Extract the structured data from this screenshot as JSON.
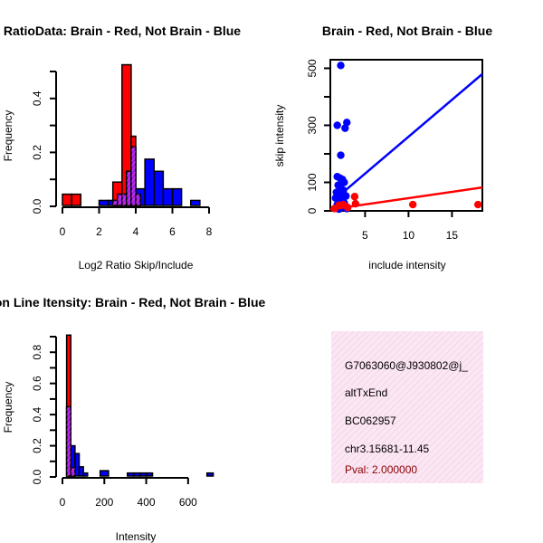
{
  "colors": {
    "brain": "#ff0000",
    "not_brain": "#0000ff",
    "overlap": "#a020f0",
    "info_box": "#f5d9ec",
    "pval": "#8b0000"
  },
  "info_box": {
    "lines": [
      "G7063060@J930802@j_",
      "altTxEnd",
      "BC062957",
      "chr3.15681-11.45"
    ],
    "pval": "Pval: 2.000000"
  },
  "chart_data": [
    {
      "id": "ratio",
      "type": "histogram",
      "title": "RatioData: Brain - Red, Not Brain - Blue",
      "xlabel": "Log2 Ratio Skip/Include",
      "ylabel": "Frequency",
      "xlim": [
        0,
        8
      ],
      "ylim": [
        0,
        0.5
      ],
      "xticks": [
        0,
        2,
        4,
        6,
        8
      ],
      "yticks": [
        0.0,
        0.2,
        0.4
      ],
      "ytick_labels": [
        "0.0",
        "0.2",
        "0.4"
      ],
      "series": [
        {
          "name": "Brain",
          "color": "red",
          "bins": [
            {
              "x0": 0.0,
              "x1": 0.5,
              "value": 0.045
            },
            {
              "x0": 0.5,
              "x1": 1.0,
              "value": 0.045
            },
            {
              "x0": 2.75,
              "x1": 3.25,
              "value": 0.09
            },
            {
              "x0": 3.25,
              "x1": 3.75,
              "value": 0.525
            },
            {
              "x0": 3.75,
              "x1": 4.0,
              "value": 0.26
            },
            {
              "x0": 4.0,
              "x1": 4.25,
              "value": 0.045
            }
          ]
        },
        {
          "name": "Not Brain",
          "color": "blue",
          "bins": [
            {
              "x0": 2.0,
              "x1": 2.5,
              "value": 0.022
            },
            {
              "x0": 2.5,
              "x1": 3.0,
              "value": 0.022
            },
            {
              "x0": 3.0,
              "x1": 3.5,
              "value": 0.045
            },
            {
              "x0": 3.5,
              "x1": 3.75,
              "value": 0.13
            },
            {
              "x0": 3.75,
              "x1": 4.0,
              "value": 0.22
            },
            {
              "x0": 4.0,
              "x1": 4.5,
              "value": 0.065
            },
            {
              "x0": 4.5,
              "x1": 5.0,
              "value": 0.175
            },
            {
              "x0": 5.0,
              "x1": 5.5,
              "value": 0.13
            },
            {
              "x0": 5.5,
              "x1": 6.0,
              "value": 0.065
            },
            {
              "x0": 6.0,
              "x1": 6.5,
              "value": 0.065
            },
            {
              "x0": 7.0,
              "x1": 7.5,
              "value": 0.022
            }
          ]
        }
      ]
    },
    {
      "id": "scatter",
      "type": "scatter",
      "title": "Brain - Red, Not Brain - Blue",
      "xlabel": "include intensity",
      "ylabel": "skip intensity",
      "xlim": [
        1,
        18.5
      ],
      "ylim": [
        0,
        530
      ],
      "xticks": [
        5,
        10,
        15
      ],
      "yticks": [
        0,
        100,
        300,
        500
      ],
      "series": [
        {
          "name": "Not Brain",
          "color": "blue",
          "points": [
            [
              2.2,
              510
            ],
            [
              1.8,
              300
            ],
            [
              2.9,
              310
            ],
            [
              2.7,
              290
            ],
            [
              2.2,
              195
            ],
            [
              1.8,
              120
            ],
            [
              2.1,
              115
            ],
            [
              2.4,
              110
            ],
            [
              2.6,
              100
            ],
            [
              1.9,
              90
            ],
            [
              2.2,
              80
            ],
            [
              2.5,
              72
            ],
            [
              1.7,
              65
            ],
            [
              2.1,
              58
            ],
            [
              2.8,
              52
            ],
            [
              1.6,
              45
            ],
            [
              2.3,
              40
            ],
            [
              2.0,
              32
            ],
            [
              2.6,
              28
            ],
            [
              1.8,
              22
            ],
            [
              2.2,
              18
            ],
            [
              2.5,
              14
            ],
            [
              1.6,
              10
            ],
            [
              2.0,
              6
            ],
            [
              2.9,
              8
            ]
          ],
          "fit": {
            "x0": 1.5,
            "y0": 40,
            "x1": 18.5,
            "y1": 480
          }
        },
        {
          "name": "Brain",
          "color": "red",
          "points": [
            [
              1.5,
              8
            ],
            [
              2.0,
              20
            ],
            [
              2.5,
              22
            ],
            [
              3.0,
              12
            ],
            [
              3.8,
              50
            ],
            [
              3.9,
              25
            ],
            [
              10.5,
              22
            ],
            [
              18.0,
              22
            ]
          ],
          "fit": {
            "x0": 1.0,
            "y0": 5,
            "x1": 18.5,
            "y1": 82
          }
        }
      ]
    },
    {
      "id": "intensity",
      "type": "histogram",
      "title": "Exon Line Itensity: Brain - Red, Not Brain - Blue",
      "xlabel": "Intensity",
      "ylabel": "Frequency",
      "xlim": [
        0,
        700
      ],
      "ylim": [
        0,
        0.9
      ],
      "xticks": [
        0,
        200,
        400,
        600
      ],
      "yticks": [
        0.0,
        0.2,
        0.4,
        0.6,
        0.8
      ],
      "ytick_labels": [
        "0.0",
        "0.2",
        "0.4",
        "0.6",
        "0.8"
      ],
      "series": [
        {
          "name": "Brain",
          "color": "red",
          "bins": [
            {
              "x0": 20,
              "x1": 40,
              "value": 0.91
            },
            {
              "x0": 40,
              "x1": 60,
              "value": 0.06
            }
          ]
        },
        {
          "name": "Not Brain",
          "color": "blue",
          "bins": [
            {
              "x0": 20,
              "x1": 40,
              "value": 0.45
            },
            {
              "x0": 40,
              "x1": 60,
              "value": 0.2
            },
            {
              "x0": 60,
              "x1": 80,
              "value": 0.15
            },
            {
              "x0": 80,
              "x1": 100,
              "value": 0.065
            },
            {
              "x0": 100,
              "x1": 120,
              "value": 0.025
            },
            {
              "x0": 120,
              "x1": 140,
              "value": 0.0
            },
            {
              "x0": 140,
              "x1": 180,
              "value": 0.0
            },
            {
              "x0": 180,
              "x1": 220,
              "value": 0.04
            },
            {
              "x0": 310,
              "x1": 340,
              "value": 0.025
            },
            {
              "x0": 340,
              "x1": 370,
              "value": 0.025
            },
            {
              "x0": 370,
              "x1": 400,
              "value": 0.025
            },
            {
              "x0": 400,
              "x1": 430,
              "value": 0.025
            },
            {
              "x0": 690,
              "x1": 720,
              "value": 0.025
            }
          ]
        }
      ]
    }
  ]
}
